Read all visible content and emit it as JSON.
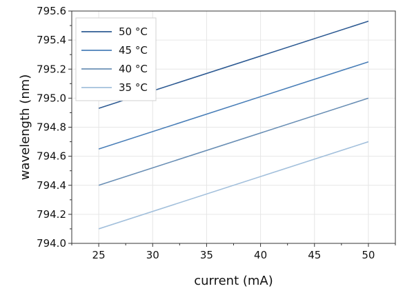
{
  "chart_data": {
    "type": "line",
    "title": "",
    "xlabel": "current (mA)",
    "ylabel": "wavelength (nm)",
    "xlim": [
      22.5,
      52.5
    ],
    "ylim": [
      794.0,
      795.6
    ],
    "x_ticks": [
      25,
      30,
      35,
      40,
      45,
      50
    ],
    "x_tick_labels": [
      "25",
      "30",
      "35",
      "40",
      "45",
      "50"
    ],
    "y_ticks": [
      794.0,
      794.2,
      794.4,
      794.6,
      794.8,
      795.0,
      795.2,
      795.4,
      795.6
    ],
    "y_tick_labels": [
      "794.0",
      "794.2",
      "794.4",
      "794.6",
      "794.8",
      "795.0",
      "795.2",
      "795.4",
      "795.6"
    ],
    "grid": true,
    "legend_position": "top-left",
    "series": [
      {
        "name": "50 °C",
        "color": "#2e5b93",
        "x": [
          25,
          50
        ],
        "y": [
          794.93,
          795.53
        ]
      },
      {
        "name": "45 °C",
        "color": "#4a7fb8",
        "x": [
          25,
          50
        ],
        "y": [
          794.65,
          795.25
        ]
      },
      {
        "name": "40 °C",
        "color": "#6a8fb5",
        "x": [
          25,
          50
        ],
        "y": [
          794.4,
          795.0
        ]
      },
      {
        "name": "35 °C",
        "color": "#a3c0dc",
        "x": [
          25,
          50
        ],
        "y": [
          794.1,
          794.7
        ]
      }
    ]
  }
}
